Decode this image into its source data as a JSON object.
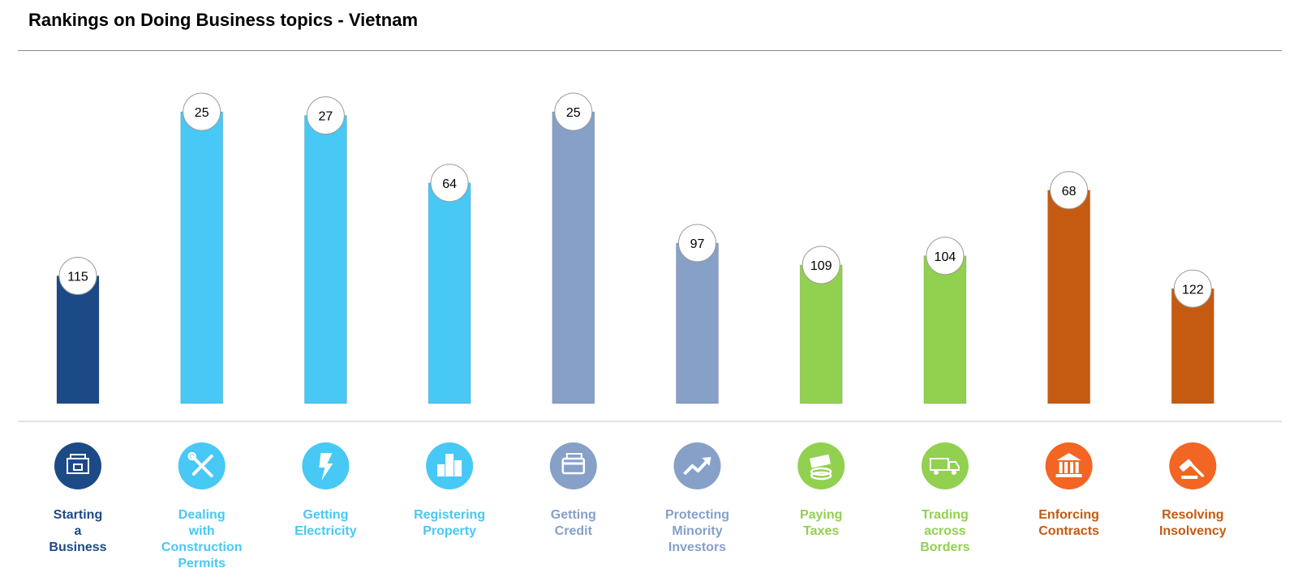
{
  "title": "Rankings on Doing Business topics - Vietnam",
  "chart_data": {
    "type": "bar",
    "title": "Rankings on Doing Business topics - Vietnam",
    "categories": [
      "Starting a Business",
      "Dealing with Construction Permits",
      "Getting Electricity",
      "Registering Property",
      "Getting Credit",
      "Protecting Minority Investors",
      "Paying Taxes",
      "Trading across Borders",
      "Enforcing Contracts",
      "Resolving Insolvency"
    ],
    "label_lines": [
      [
        "Starting",
        "a",
        "Business"
      ],
      [
        "Dealing",
        "with",
        "Construction",
        "Permits"
      ],
      [
        "Getting",
        "Electricity"
      ],
      [
        "Registering",
        "Property"
      ],
      [
        "Getting",
        "Credit"
      ],
      [
        "Protecting",
        "Minority",
        "Investors"
      ],
      [
        "Paying",
        "Taxes"
      ],
      [
        "Trading",
        "across",
        "Borders"
      ],
      [
        "Enforcing",
        "Contracts"
      ],
      [
        "Resolving",
        "Insolvency"
      ]
    ],
    "values": [
      115,
      25,
      27,
      64,
      25,
      97,
      109,
      104,
      68,
      122
    ],
    "colors": [
      "#1c4a87",
      "#48c8f5",
      "#48c8f5",
      "#48c8f5",
      "#86a0c8",
      "#86a0c8",
      "#92d050",
      "#92d050",
      "#c55a11",
      "#c55a11"
    ],
    "icon_colors": [
      "#1c4a87",
      "#48c8f5",
      "#48c8f5",
      "#48c8f5",
      "#86a0c8",
      "#86a0c8",
      "#92d050",
      "#92d050",
      "#f26522",
      "#f26522"
    ],
    "icons": [
      "building-icon",
      "tools-icon",
      "lightning-icon",
      "city-icon",
      "credit-card-icon",
      "trend-arrow-icon",
      "money-icon",
      "truck-icon",
      "courthouse-icon",
      "gavel-icon"
    ],
    "ranking_note": "lower rank draws taller bar"
  }
}
